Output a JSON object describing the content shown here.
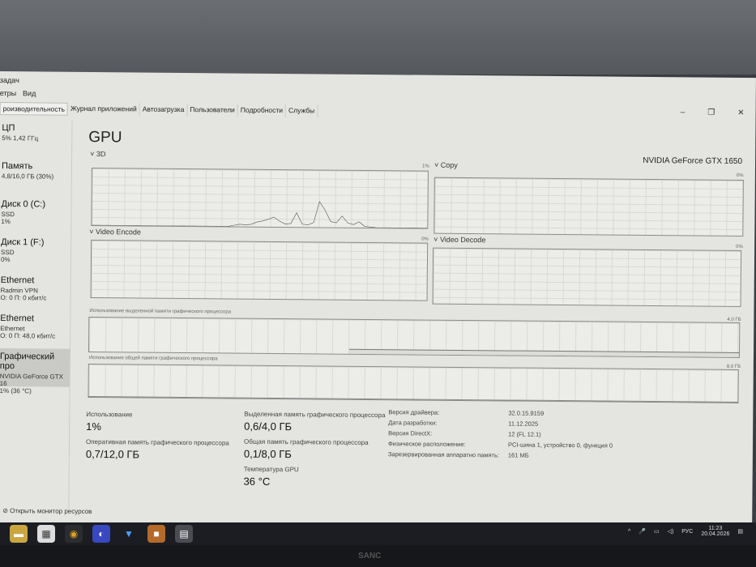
{
  "window": {
    "title_fragment": "задач",
    "menu": [
      "етры",
      "Вид"
    ],
    "tabs": [
      "роизводительность",
      "Журнал приложений",
      "Автозагрузка",
      "Пользователи",
      "Подробности",
      "Службы"
    ],
    "active_tab": 0
  },
  "sidebar": {
    "items": [
      {
        "title": "ЦП",
        "l1": "5% 1,42 ГГц",
        "l2": "",
        "l3": ""
      },
      {
        "title": "Память",
        "l1": "4,8/16,0 ГБ (30%)",
        "l2": "",
        "l3": ""
      },
      {
        "title": "Диск 0 (C:)",
        "l1": "SSD",
        "l2": "1%",
        "l3": ""
      },
      {
        "title": "Диск 1 (F:)",
        "l1": "SSD",
        "l2": "0%",
        "l3": ""
      },
      {
        "title": "Ethernet",
        "l1": "Radmin VPN",
        "l2": "О: 0 П: 0 кбит/с",
        "l3": ""
      },
      {
        "title": "Ethernet",
        "l1": "Ethernet",
        "l2": "О: 0 П: 48,0 кбит/с",
        "l3": ""
      },
      {
        "title": "Графический про",
        "l1": "NVIDIA GeForce GTX 16",
        "l2": "1% (36 °C)",
        "l3": ""
      }
    ],
    "active": 6
  },
  "main": {
    "title": "GPU",
    "gpu_name": "NVIDIA GeForce GTX 1650",
    "graphs": {
      "g3d": {
        "label": "3D",
        "max": "1%",
        "samples": [
          0,
          0,
          0,
          0,
          0,
          0,
          0,
          0,
          0,
          0,
          0,
          0,
          0,
          0,
          0,
          0,
          0,
          0,
          0,
          0,
          0,
          0,
          0,
          0,
          0,
          0.02,
          0.04,
          0.03,
          0.04,
          0.08,
          0.1,
          0.13,
          0.17,
          0.1,
          0.05,
          0.06,
          0.25,
          0.05,
          0.04,
          0.08,
          0.45,
          0.3,
          0.1,
          0.08,
          0.2,
          0.08,
          0.05,
          0.1,
          0.02,
          0.01,
          0,
          0,
          0,
          0,
          0,
          0,
          0,
          0,
          0,
          0
        ]
      },
      "copy": {
        "label": "Copy",
        "max": "0%"
      },
      "encode": {
        "label": "Video Encode",
        "max": "0%"
      },
      "decode": {
        "label": "Video Decode",
        "max": "0%"
      },
      "dedicated": {
        "label": "Использование выделенной памяти графического процессора",
        "max": "4,0 ГБ",
        "fraction": 0.15
      },
      "shared": {
        "label": "Использование общей памяти графического процессора",
        "max": "8,0 ГБ",
        "fraction": 0.0125
      }
    },
    "stats": {
      "usage_label": "Использование",
      "usage": "1%",
      "gpu_mem_label": "Оперативная память графического процессора",
      "gpu_mem": "0,7/12,0 ГБ",
      "ded_label": "Выделенная память графического процессора",
      "ded": "0,6/4,0 ГБ",
      "shared_label": "Общая память графического процессора",
      "shared": "0,1/8,0 ГБ",
      "temp_label": "Температура GPU",
      "temp": "36 °C"
    },
    "info": [
      [
        "Версия драйвера:",
        "32.0.15.9159"
      ],
      [
        "Дата разработки:",
        "11.12.2025"
      ],
      [
        "Версия DirectX:",
        "12 (FL 12.1)"
      ],
      [
        "Физическое расположение:",
        "PCI-шина 1, устройство 0, функция 0"
      ],
      [
        "Зарезервированная аппаратно память:",
        "161 МБ"
      ]
    ],
    "footer": "Открыть монитор ресурсов"
  },
  "taskbar": {
    "lang": "РУС",
    "time": "11:23",
    "date": "20.04.2026"
  },
  "monitor_brand": "SANC"
}
